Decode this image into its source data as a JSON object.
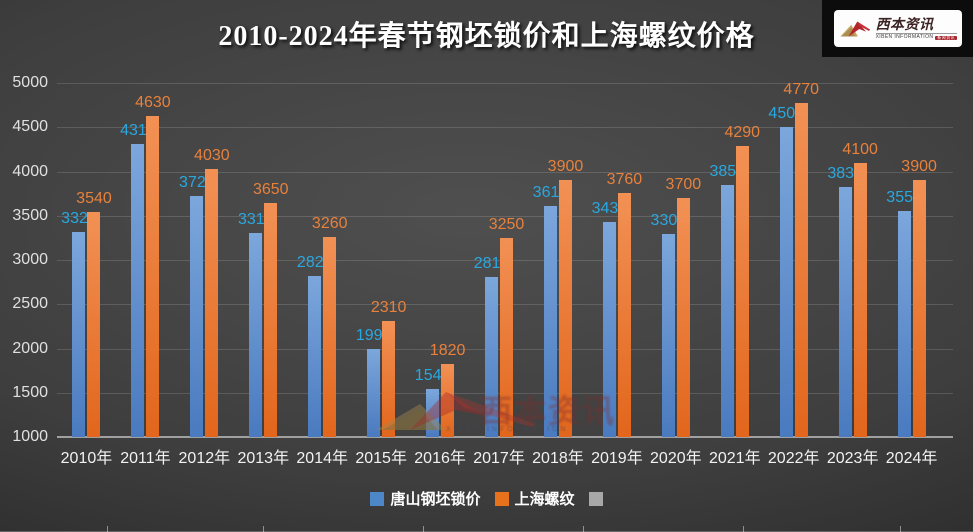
{
  "title": "2010-2024年春节钢坯锁价和上海螺纹价格",
  "logo": {
    "cn": "西本资讯",
    "en": "XIBEN INFORMATION",
    "tag": "新闻资讯"
  },
  "watermark": {
    "cn": "西本资讯",
    "en": "XIBEN INFORMATION"
  },
  "chart_data": {
    "type": "bar",
    "title": "2010-2024年春节钢坯锁价和上海螺纹价格",
    "categories": [
      "2010年",
      "2011年",
      "2012年",
      "2013年",
      "2014年",
      "2015年",
      "2016年",
      "2017年",
      "2018年",
      "2019年",
      "2020年",
      "2021年",
      "2022年",
      "2023年",
      "2024年"
    ],
    "series": [
      {
        "name": "唐山钢坯锁价",
        "values": [
          3320,
          4310,
          3720,
          3310,
          2820,
          1990,
          1540,
          2810,
          3610,
          3430,
          3300,
          3850,
          4500,
          3830,
          3550
        ],
        "bar_color_top": "#7ca7dc",
        "bar_color_bottom": "#4a7abf",
        "label_color": "#29a8e0",
        "legend_color": "#4e87c8"
      },
      {
        "name": "上海螺纹",
        "values": [
          3540,
          4630,
          4030,
          3650,
          3260,
          2310,
          1820,
          3250,
          3900,
          3760,
          3700,
          4290,
          4770,
          4100,
          3900
        ],
        "bar_color_top": "#f29155",
        "bar_color_bottom": "#e2661c",
        "label_color": "#e8813c",
        "legend_color": "#e8711c"
      },
      {
        "name": "",
        "values": [],
        "legend_color": "#a8a8a8"
      }
    ],
    "ylim": [
      1000,
      5000
    ],
    "ytick_step": 500,
    "grid": true,
    "legend_position": "bottom",
    "background": "dark-gray-radial"
  }
}
